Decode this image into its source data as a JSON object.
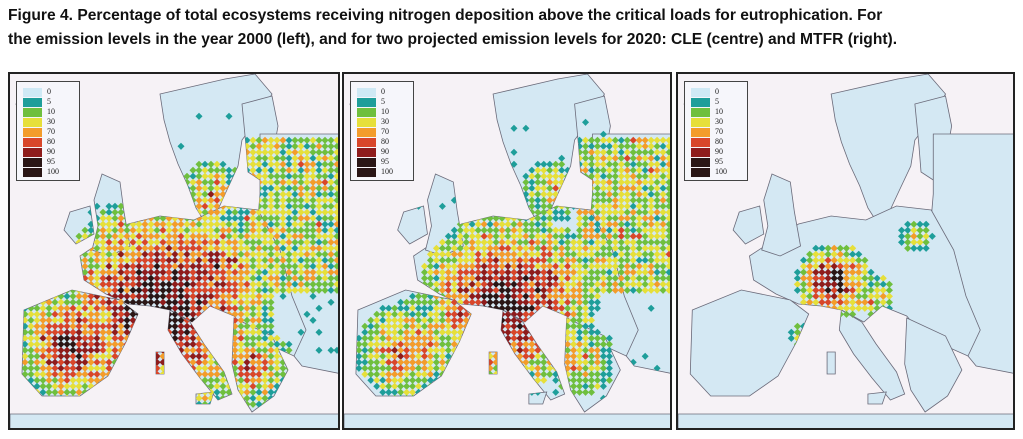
{
  "caption": {
    "line1": "Figure 4. Percentage of total ecosystems receiving nitrogen deposition above the critical loads for eutrophication. For",
    "line2": "the emission levels in the year 2000 (left), and for two projected emission levels for 2020: CLE (centre) and MTFR (right)."
  },
  "legend": {
    "classes": [
      {
        "label": "0",
        "color": "#cfe9f5"
      },
      {
        "label": "5",
        "color": "#1e9e9a"
      },
      {
        "label": "10",
        "color": "#6fbf3e"
      },
      {
        "label": "30",
        "color": "#e6df3a"
      },
      {
        "label": "70",
        "color": "#f39c2b"
      },
      {
        "label": "80",
        "color": "#d8462a"
      },
      {
        "label": "90",
        "color": "#8e1c1c"
      },
      {
        "label": "95",
        "color": "#2a1616"
      },
      {
        "label": "100",
        "color": "#2a1616"
      }
    ]
  },
  "colors": {
    "sea": "#f6f2f6",
    "land": "#d4e8f3",
    "coast": "#6b6b7a"
  },
  "maps": [
    {
      "id": "year-2000",
      "intensity": "high"
    },
    {
      "id": "cle-2020",
      "intensity": "medium"
    },
    {
      "id": "mtfr-2020",
      "intensity": "low"
    }
  ]
}
